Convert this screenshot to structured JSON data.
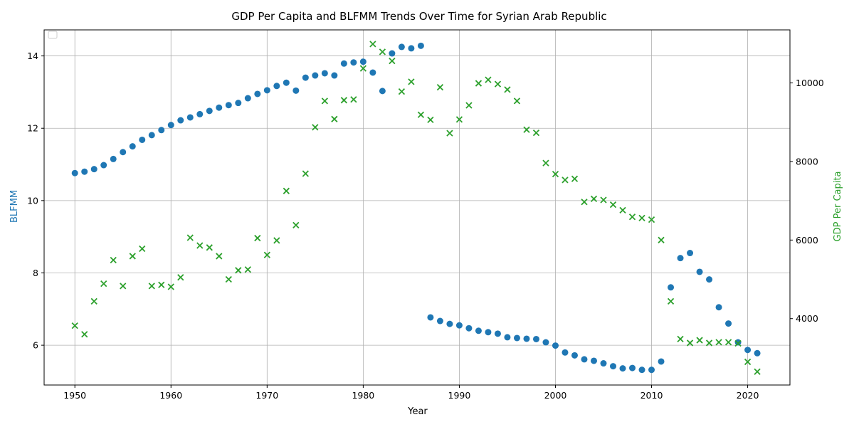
{
  "chart_data": {
    "type": "scatter",
    "title": "GDP Per Capita and BLFMM Trends Over Time for Syrian Arab Republic",
    "xlabel": "Year",
    "ylabel_left": "BLFMM",
    "ylabel_right": "GDP Per Capita",
    "xlim": [
      1946.8,
      2024.4
    ],
    "ylim_left": [
      4.9,
      14.72
    ],
    "ylim_right": [
      2310,
      11350
    ],
    "x_ticks": [
      1950,
      1960,
      1970,
      1980,
      1990,
      2000,
      2010,
      2020
    ],
    "y_ticks_left": [
      6,
      8,
      10,
      12,
      14
    ],
    "y_ticks_right": [
      4000,
      6000,
      8000,
      10000
    ],
    "grid": true,
    "legend": "upper-left (empty)",
    "colors": {
      "blfmm": "#1f77b4",
      "gdp": "#2ca02c",
      "left_label": "#1f77b4",
      "right_label": "#2ca02c"
    },
    "series": [
      {
        "axis": "left",
        "marker": "circle",
        "x": [
          1950,
          1951,
          1952,
          1953,
          1954,
          1955,
          1956,
          1957,
          1958,
          1959,
          1960,
          1961,
          1962,
          1963,
          1964,
          1965,
          1966,
          1967,
          1968,
          1969,
          1970,
          1971,
          1972,
          1973,
          1974,
          1975,
          1976,
          1977,
          1978,
          1979,
          1980,
          1981,
          1982,
          1983,
          1984,
          1985,
          1986,
          1987,
          1988,
          1989,
          1990,
          1991,
          1992,
          1993,
          1994,
          1995,
          1996,
          1997,
          1998,
          1999,
          2000,
          2001,
          2002,
          2003,
          2004,
          2005,
          2006,
          2007,
          2008,
          2009,
          2010,
          2011,
          2012,
          2013,
          2014,
          2015,
          2016,
          2017,
          2018,
          2019,
          2020,
          2021
        ],
        "values": [
          10.76,
          10.8,
          10.87,
          10.98,
          11.15,
          11.34,
          11.5,
          11.68,
          11.81,
          11.95,
          12.09,
          12.22,
          12.3,
          12.39,
          12.48,
          12.57,
          12.64,
          12.7,
          12.83,
          12.95,
          13.05,
          13.17,
          13.26,
          13.04,
          13.4,
          13.46,
          13.52,
          13.46,
          13.79,
          13.82,
          13.84,
          13.54,
          13.03,
          14.07,
          14.25,
          14.21,
          14.28,
          6.77,
          6.67,
          6.59,
          6.55,
          6.47,
          6.4,
          6.36,
          6.32,
          6.22,
          6.2,
          6.18,
          6.17,
          6.08,
          5.99,
          5.8,
          5.72,
          5.61,
          5.57,
          5.5,
          5.42,
          5.36,
          5.37,
          5.32,
          5.32,
          5.55,
          7.6,
          8.41,
          8.55,
          8.03,
          7.82,
          7.05,
          6.6,
          6.08,
          5.87,
          5.78
        ]
      },
      {
        "axis": "right",
        "marker": "x",
        "x": [
          1950,
          1951,
          1952,
          1953,
          1954,
          1955,
          1956,
          1957,
          1958,
          1959,
          1960,
          1961,
          1962,
          1963,
          1964,
          1965,
          1966,
          1967,
          1968,
          1969,
          1970,
          1971,
          1972,
          1973,
          1974,
          1975,
          1976,
          1977,
          1978,
          1979,
          1980,
          1981,
          1982,
          1983,
          1984,
          1985,
          1986,
          1987,
          1988,
          1989,
          1990,
          1991,
          1992,
          1993,
          1994,
          1995,
          1996,
          1997,
          1998,
          1999,
          2000,
          2001,
          2002,
          2003,
          2004,
          2005,
          2006,
          2007,
          2008,
          2009,
          2010,
          2011,
          2012,
          2013,
          2014,
          2015,
          2016,
          2017,
          2018,
          2019,
          2020,
          2021
        ],
        "values": [
          3820,
          3600,
          4440,
          4890,
          5490,
          4830,
          5590,
          5780,
          4830,
          4860,
          4810,
          5050,
          6060,
          5860,
          5810,
          5590,
          5000,
          5230,
          5250,
          6050,
          5620,
          5990,
          7250,
          6380,
          7690,
          8870,
          9540,
          9080,
          9560,
          9580,
          10370,
          10990,
          10790,
          10560,
          9780,
          10030,
          9190,
          9060,
          9890,
          8720,
          9070,
          9430,
          9990,
          10080,
          9970,
          9830,
          9540,
          8810,
          8730,
          7960,
          7680,
          7530,
          7560,
          6970,
          7050,
          7020,
          6900,
          6760,
          6590,
          6560,
          6520,
          6000,
          4440,
          3480,
          3380,
          3450,
          3380,
          3400,
          3400,
          3370,
          2900,
          2650
        ]
      }
    ]
  }
}
